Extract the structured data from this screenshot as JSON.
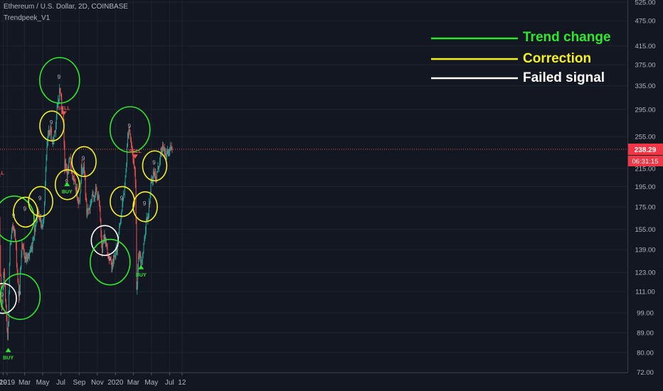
{
  "header": {
    "symbol": "Ethereum / U.S. Dollar, 2D, COINBASE",
    "indicator": "Trendpeek_V1"
  },
  "legend": [
    {
      "label": "Trend change",
      "color": "#2ee82e"
    },
    {
      "label": "Correction",
      "color": "#f4f025"
    },
    {
      "label": "Failed signal",
      "color": "#ffffff"
    }
  ],
  "colors": {
    "background": "#131722",
    "grid": "#1f2330",
    "up": "#26a69a",
    "down": "#ef5350",
    "axis_text": "#b2b5be",
    "buy": "#2ee82e",
    "sell": "#ef5350",
    "price_tag": "#f23645"
  },
  "chart_data": {
    "type": "candlestick",
    "y_scale": "log",
    "y_ticks": [
      "525.00",
      "475.00",
      "415.00",
      "375.00",
      "335.00",
      "295.00",
      "255.00",
      "215.00",
      "195.00",
      "175.00",
      "155.00",
      "139.00",
      "123.00",
      "111.00",
      "99.00",
      "89.00",
      "80.00",
      "72.00"
    ],
    "x_ticks": [
      "19",
      "2019",
      "Mar",
      "May",
      "Jul",
      "Sep",
      "Nov",
      "2020",
      "Mar",
      "May",
      "Jul",
      "12"
    ],
    "x_range": [
      "2018-12-01",
      "2020-07-25"
    ],
    "ylim": [
      72,
      525
    ],
    "current_price": "238.29",
    "countdown": "06:31:15",
    "price_path": [
      [
        "2018-12-01",
        215
      ],
      [
        "2018-12-06",
        175
      ],
      [
        "2018-12-12",
        110
      ],
      [
        "2018-12-15",
        100
      ],
      [
        "2018-12-22",
        125
      ],
      [
        "2018-12-28",
        105
      ],
      [
        "2019-01-02",
        90
      ],
      [
        "2019-01-05",
        84
      ],
      [
        "2019-01-11",
        140
      ],
      [
        "2019-01-23",
        160
      ],
      [
        "2019-01-29",
        150
      ],
      [
        "2019-02-05",
        125
      ],
      [
        "2019-02-11",
        108
      ],
      [
        "2019-02-20",
        140
      ],
      [
        "2019-03-10",
        132
      ],
      [
        "2019-03-25",
        140
      ],
      [
        "2019-04-15",
        172
      ],
      [
        "2019-04-22",
        165
      ],
      [
        "2019-05-01",
        155
      ],
      [
        "2019-05-07",
        175
      ],
      [
        "2019-05-15",
        235
      ],
      [
        "2019-05-20",
        255
      ],
      [
        "2019-05-28",
        265
      ],
      [
        "2019-06-05",
        245
      ],
      [
        "2019-06-15",
        275
      ],
      [
        "2019-06-24",
        315
      ],
      [
        "2019-06-28",
        330
      ],
      [
        "2019-07-06",
        300
      ],
      [
        "2019-07-11",
        280
      ],
      [
        "2019-07-15",
        218
      ],
      [
        "2019-07-25",
        210
      ],
      [
        "2019-08-02",
        225
      ],
      [
        "2019-08-14",
        200
      ],
      [
        "2019-08-24",
        190
      ],
      [
        "2019-09-02",
        178
      ],
      [
        "2019-09-09",
        215
      ],
      [
        "2019-09-14",
        220
      ],
      [
        "2019-09-21",
        205
      ],
      [
        "2019-09-26",
        170
      ],
      [
        "2019-10-08",
        175
      ],
      [
        "2019-10-14",
        185
      ],
      [
        "2019-10-28",
        190
      ],
      [
        "2019-11-05",
        185
      ],
      [
        "2019-11-10",
        170
      ],
      [
        "2019-11-18",
        140
      ],
      [
        "2019-11-26",
        148
      ],
      [
        "2019-12-05",
        140
      ],
      [
        "2019-12-15",
        130
      ],
      [
        "2019-12-22",
        128
      ],
      [
        "2019-12-30",
        134
      ],
      [
        "2020-01-08",
        140
      ],
      [
        "2020-01-15",
        160
      ],
      [
        "2020-01-25",
        175
      ],
      [
        "2020-02-05",
        205
      ],
      [
        "2020-02-12",
        255
      ],
      [
        "2020-02-17",
        270
      ],
      [
        "2020-02-24",
        245
      ],
      [
        "2020-03-01",
        230
      ],
      [
        "2020-03-07",
        210
      ],
      [
        "2020-03-10",
        200
      ],
      [
        "2020-03-13",
        112
      ],
      [
        "2020-03-20",
        135
      ],
      [
        "2020-03-28",
        130
      ],
      [
        "2020-04-05",
        140
      ],
      [
        "2020-04-15",
        165
      ],
      [
        "2020-04-22",
        170
      ],
      [
        "2020-04-30",
        195
      ],
      [
        "2020-05-08",
        210
      ],
      [
        "2020-05-18",
        205
      ],
      [
        "2020-05-30",
        225
      ],
      [
        "2020-06-07",
        240
      ],
      [
        "2020-06-15",
        235
      ],
      [
        "2020-06-25",
        232
      ],
      [
        "2020-07-03",
        238
      ],
      [
        "2020-07-10",
        238
      ]
    ],
    "signals": [
      {
        "type": "SELL",
        "date": "2018-12-01",
        "price": 205
      },
      {
        "type": "BUY",
        "date": "2019-01-05",
        "price": 82
      },
      {
        "type": "SELL",
        "date": "2019-07-11",
        "price": 290
      },
      {
        "type": "BUY",
        "date": "2019-07-22",
        "price": 200
      },
      {
        "type": "SELL",
        "date": "2020-03-07",
        "price": 230
      },
      {
        "type": "BUY",
        "date": "2020-03-27",
        "price": 128
      }
    ],
    "annotations": [
      {
        "kind": "Failed signal",
        "date": "2018-12-18",
        "price": 107,
        "label": "9"
      },
      {
        "kind": "Trend change",
        "date": "2019-01-25",
        "price": 164,
        "label": "9"
      },
      {
        "kind": "Trend change",
        "date": "2019-02-14",
        "price": 108,
        "label": "9"
      },
      {
        "kind": "Correction",
        "date": "2019-03-04",
        "price": 170,
        "label": "9"
      },
      {
        "kind": "Correction",
        "date": "2019-04-24",
        "price": 180,
        "label": "9"
      },
      {
        "kind": "Correction",
        "date": "2019-06-01",
        "price": 270,
        "label": "9"
      },
      {
        "kind": "Trend change",
        "date": "2019-06-27",
        "price": 345,
        "label": "9"
      },
      {
        "kind": "Correction",
        "date": "2019-07-23",
        "price": 197,
        "label": "9"
      },
      {
        "kind": "Correction",
        "date": "2019-09-17",
        "price": 223,
        "label": "9"
      },
      {
        "kind": "Failed signal",
        "date": "2019-11-26",
        "price": 146,
        "label": "9"
      },
      {
        "kind": "Trend change",
        "date": "2019-12-14",
        "price": 130,
        "label": "9"
      },
      {
        "kind": "Correction",
        "date": "2020-01-24",
        "price": 180,
        "label": "9"
      },
      {
        "kind": "Trend change",
        "date": "2020-02-19",
        "price": 265,
        "label": "9"
      },
      {
        "kind": "Correction",
        "date": "2020-04-10",
        "price": 175,
        "label": "9"
      },
      {
        "kind": "Correction",
        "date": "2020-05-12",
        "price": 218,
        "label": "9"
      }
    ]
  }
}
